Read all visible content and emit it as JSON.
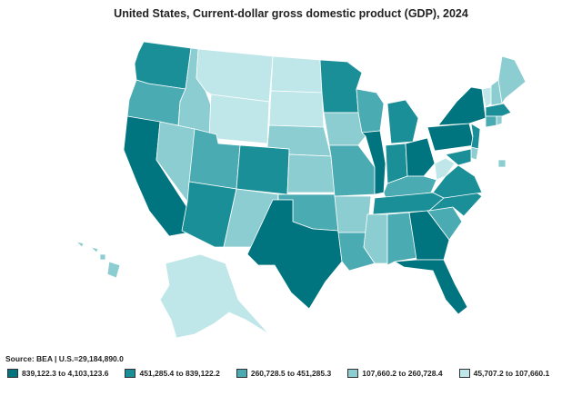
{
  "title": "United States, Current-dollar gross domestic product (GDP), 2024",
  "source": "Source: BEA | U.S.=29,184,890.0",
  "legend": [
    {
      "label": "839,122.3 to 4,103,123.6",
      "color": "#00757f"
    },
    {
      "label": "451,285.4 to 839,122.2",
      "color": "#1b8f98"
    },
    {
      "label": "260,728.5 to 451,285.3",
      "color": "#4aabb2"
    },
    {
      "label": "107,660.2 to 260,728.4",
      "color": "#8ccdd1"
    },
    {
      "label": "45,707.2 to 107,660.1",
      "color": "#bfe6e8"
    }
  ],
  "states": [
    {
      "id": "WA",
      "class": 1
    },
    {
      "id": "OR",
      "class": 2
    },
    {
      "id": "CA",
      "class": 0
    },
    {
      "id": "ID",
      "class": 3
    },
    {
      "id": "NV",
      "class": 3
    },
    {
      "id": "MT",
      "class": 4
    },
    {
      "id": "WY",
      "class": 4
    },
    {
      "id": "UT",
      "class": 2
    },
    {
      "id": "AZ",
      "class": 1
    },
    {
      "id": "CO",
      "class": 1
    },
    {
      "id": "NM",
      "class": 3
    },
    {
      "id": "ND",
      "class": 4
    },
    {
      "id": "SD",
      "class": 4
    },
    {
      "id": "NE",
      "class": 3
    },
    {
      "id": "KS",
      "class": 3
    },
    {
      "id": "OK",
      "class": 2
    },
    {
      "id": "TX",
      "class": 0
    },
    {
      "id": "MN",
      "class": 1
    },
    {
      "id": "IA",
      "class": 3
    },
    {
      "id": "MO",
      "class": 2
    },
    {
      "id": "AR",
      "class": 3
    },
    {
      "id": "LA",
      "class": 2
    },
    {
      "id": "WI",
      "class": 2
    },
    {
      "id": "IL",
      "class": 0
    },
    {
      "id": "MI",
      "class": 1
    },
    {
      "id": "IN",
      "class": 1
    },
    {
      "id": "OH",
      "class": 0
    },
    {
      "id": "KY",
      "class": 2
    },
    {
      "id": "TN",
      "class": 1
    },
    {
      "id": "MS",
      "class": 3
    },
    {
      "id": "AL",
      "class": 2
    },
    {
      "id": "GA",
      "class": 0
    },
    {
      "id": "FL",
      "class": 0
    },
    {
      "id": "SC",
      "class": 2
    },
    {
      "id": "NC",
      "class": 1
    },
    {
      "id": "VA",
      "class": 1
    },
    {
      "id": "WV",
      "class": 4
    },
    {
      "id": "PA",
      "class": 0
    },
    {
      "id": "NY",
      "class": 0
    },
    {
      "id": "VT",
      "class": 4
    },
    {
      "id": "NH",
      "class": 3
    },
    {
      "id": "ME",
      "class": 3
    },
    {
      "id": "MA",
      "class": 1
    },
    {
      "id": "CT",
      "class": 2
    },
    {
      "id": "RI",
      "class": 3
    },
    {
      "id": "NJ",
      "class": 1
    },
    {
      "id": "DE",
      "class": 3
    },
    {
      "id": "MD",
      "class": 1
    },
    {
      "id": "DC",
      "class": 3
    },
    {
      "id": "AK",
      "class": 4
    },
    {
      "id": "HI",
      "class": 3
    }
  ]
}
